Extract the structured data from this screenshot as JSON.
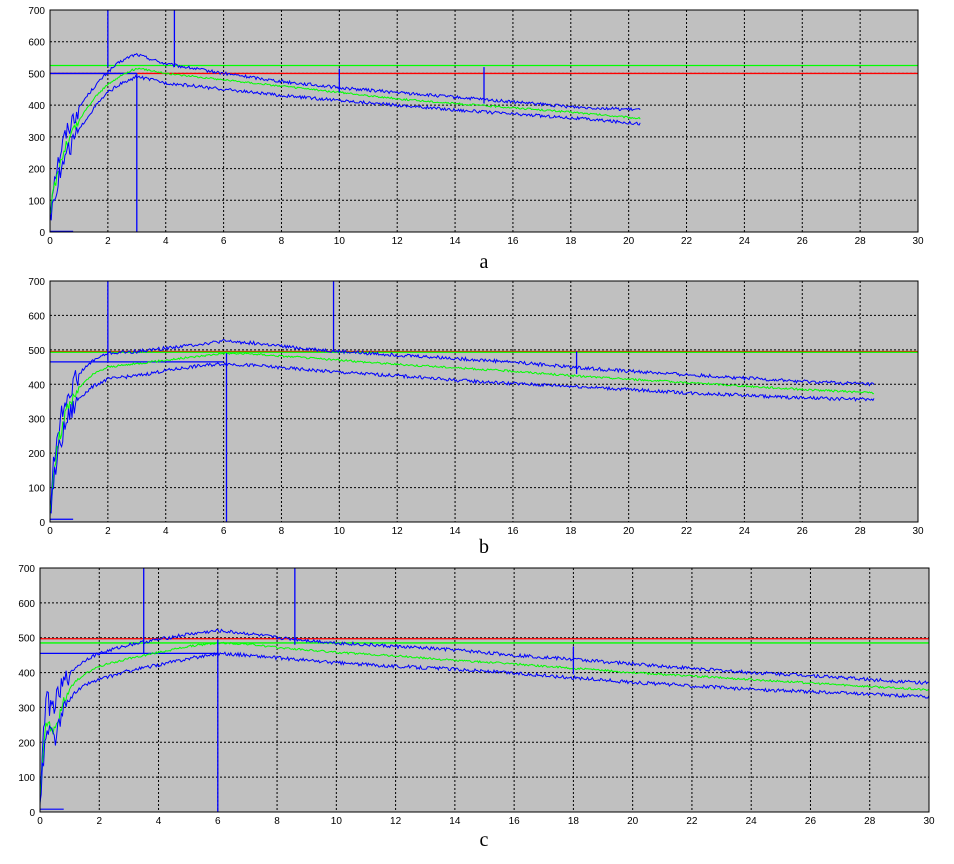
{
  "chart_data": [
    {
      "type": "line",
      "label": "a",
      "xlim": [
        0,
        30
      ],
      "ylim": [
        0,
        700
      ],
      "xticks": [
        "0",
        "2",
        "4",
        "6",
        "8",
        "10",
        "12",
        "14",
        "16",
        "18",
        "20",
        "22",
        "24",
        "26",
        "28",
        "30"
      ],
      "yticks": [
        "0",
        "100",
        "200",
        "300",
        "400",
        "500",
        "600",
        "700"
      ],
      "grid": true,
      "background": "#c0c0c0",
      "ref_lines": [
        {
          "y": 500,
          "color": "#ff0000"
        },
        {
          "y": 525,
          "color": "#00ff00"
        },
        {
          "y": 500,
          "x_to": 3,
          "color": "#0000ff"
        }
      ],
      "base_line": {
        "x": [
          0,
          0.8
        ],
        "y": 2
      },
      "v_markers": [
        {
          "x": 2.0,
          "y_from": 520,
          "y_to": 700
        },
        {
          "x": 3.0,
          "y_from": 0,
          "y_to": 500
        },
        {
          "x": 4.3,
          "y_from": 520,
          "y_to": 700
        },
        {
          "x": 10.0,
          "y_from": 440,
          "y_to": 515
        },
        {
          "x": 15.0,
          "y_from": 405,
          "y_to": 520
        }
      ],
      "series": [
        {
          "color": "#0000ff",
          "noise": 5,
          "x": [
            0,
            0.1,
            0.3,
            0.5,
            0.8,
            1.2,
            1.6,
            2.0,
            2.4,
            2.8,
            3.0,
            3.5,
            4.0,
            5,
            6,
            8,
            10,
            12,
            14,
            16,
            18,
            20.4
          ],
          "y": [
            60,
            150,
            230,
            300,
            360,
            420,
            465,
            505,
            535,
            555,
            560,
            545,
            530,
            515,
            500,
            475,
            455,
            440,
            425,
            410,
            395,
            385
          ]
        },
        {
          "color": "#00ff00",
          "noise": 3,
          "x": [
            0,
            0.1,
            0.3,
            0.5,
            0.8,
            1.2,
            1.6,
            2.0,
            2.4,
            2.8,
            3.0,
            3.5,
            4.0,
            5,
            6,
            8,
            10,
            12,
            14,
            16,
            18,
            20.4
          ],
          "y": [
            50,
            120,
            200,
            260,
            320,
            380,
            430,
            465,
            490,
            510,
            515,
            510,
            500,
            490,
            480,
            460,
            440,
            420,
            405,
            392,
            378,
            358
          ]
        },
        {
          "color": "#0000ff",
          "noise": 5,
          "x": [
            0,
            0.1,
            0.3,
            0.5,
            0.8,
            1.2,
            1.6,
            2.0,
            2.4,
            2.8,
            3.0,
            3.5,
            4.0,
            5,
            6,
            8,
            10,
            12,
            14,
            16,
            18,
            20.4
          ],
          "y": [
            40,
            100,
            170,
            230,
            290,
            350,
            400,
            440,
            465,
            480,
            490,
            480,
            470,
            460,
            450,
            430,
            415,
            400,
            385,
            372,
            360,
            342
          ]
        }
      ]
    },
    {
      "type": "line",
      "label": "b",
      "xlim": [
        0,
        30
      ],
      "ylim": [
        0,
        700
      ],
      "xticks": [
        "0",
        "2",
        "4",
        "6",
        "8",
        "10",
        "12",
        "14",
        "16",
        "18",
        "20",
        "22",
        "24",
        "26",
        "28",
        "30"
      ],
      "yticks": [
        "0",
        "100",
        "200",
        "300",
        "400",
        "500",
        "600",
        "700"
      ],
      "grid": true,
      "background": "#c0c0c0",
      "ref_lines": [
        {
          "y": 495,
          "color": "#ff0000"
        },
        {
          "y": 493,
          "color": "#00ff00"
        },
        {
          "y": 465,
          "x_to": 6,
          "color": "#0000ff"
        }
      ],
      "base_line": {
        "x": [
          0,
          0.8
        ],
        "y": 8
      },
      "v_markers": [
        {
          "x": 2.0,
          "y_from": 465,
          "y_to": 700
        },
        {
          "x": 6.1,
          "y_from": 0,
          "y_to": 490
        },
        {
          "x": 9.8,
          "y_from": 495,
          "y_to": 700
        },
        {
          "x": 18.2,
          "y_from": 430,
          "y_to": 495
        }
      ],
      "series": [
        {
          "color": "#0000ff",
          "noise": 5,
          "x": [
            0,
            0.1,
            0.3,
            0.6,
            1.0,
            1.5,
            2.0,
            3,
            4,
            5,
            6,
            7,
            8,
            10,
            12,
            14,
            16,
            18,
            20,
            22,
            24,
            26,
            28.5
          ],
          "y": [
            30,
            150,
            280,
            370,
            430,
            470,
            490,
            495,
            505,
            515,
            525,
            520,
            510,
            495,
            485,
            475,
            465,
            450,
            438,
            428,
            418,
            408,
            400
          ]
        },
        {
          "color": "#00ff00",
          "noise": 3,
          "x": [
            0,
            0.1,
            0.3,
            0.6,
            1.0,
            1.5,
            2.0,
            3,
            4,
            5,
            6,
            7,
            8,
            10,
            12,
            14,
            16,
            18,
            20,
            22,
            24,
            26,
            28.5
          ],
          "y": [
            20,
            120,
            240,
            330,
            390,
            430,
            450,
            460,
            470,
            480,
            490,
            488,
            482,
            470,
            458,
            448,
            438,
            425,
            415,
            405,
            395,
            385,
            375
          ]
        },
        {
          "color": "#0000ff",
          "noise": 5,
          "x": [
            0,
            0.1,
            0.3,
            0.6,
            1.0,
            1.5,
            2.0,
            3,
            4,
            5,
            6,
            7,
            8,
            10,
            12,
            14,
            16,
            18,
            20,
            22,
            24,
            26,
            28.5
          ],
          "y": [
            15,
            100,
            210,
            300,
            360,
            395,
            415,
            425,
            440,
            452,
            460,
            455,
            448,
            435,
            425,
            412,
            402,
            395,
            385,
            375,
            368,
            360,
            355
          ]
        }
      ]
    },
    {
      "type": "line",
      "label": "c",
      "xlim": [
        0,
        30
      ],
      "ylim": [
        0,
        700
      ],
      "xticks": [
        "0",
        "2",
        "4",
        "6",
        "8",
        "10",
        "12",
        "14",
        "16",
        "18",
        "20",
        "22",
        "24",
        "26",
        "28",
        "30"
      ],
      "yticks": [
        "0",
        "100",
        "200",
        "300",
        "400",
        "500",
        "600",
        "700"
      ],
      "grid": true,
      "background": "#c0c0c0",
      "ref_lines": [
        {
          "y": 497,
          "color": "#ff0000"
        },
        {
          "y": 485,
          "color": "#00ff00"
        },
        {
          "y": 455,
          "x_to": 6,
          "color": "#0000ff"
        }
      ],
      "base_line": {
        "x": [
          0,
          0.8
        ],
        "y": 8
      },
      "v_markers": [
        {
          "x": 3.5,
          "y_from": 455,
          "y_to": 700
        },
        {
          "x": 6.0,
          "y_from": 0,
          "y_to": 495
        },
        {
          "x": 8.6,
          "y_from": 480,
          "y_to": 700
        },
        {
          "x": 18.0,
          "y_from": 395,
          "y_to": 475
        }
      ],
      "series": [
        {
          "color": "#0000ff",
          "noise": 5,
          "x": [
            0,
            0.1,
            0.2,
            0.35,
            0.5,
            0.7,
            0.9,
            1.2,
            1.6,
            2.0,
            3,
            4,
            5,
            6,
            7,
            8,
            10,
            12,
            14,
            16,
            18,
            20,
            22,
            24,
            26,
            28,
            30
          ],
          "y": [
            40,
            200,
            330,
            300,
            310,
            350,
            385,
            415,
            440,
            455,
            480,
            495,
            510,
            520,
            512,
            500,
            485,
            475,
            465,
            450,
            438,
            425,
            412,
            400,
            392,
            380,
            370
          ]
        },
        {
          "color": "#00ff00",
          "noise": 3,
          "x": [
            0,
            0.1,
            0.2,
            0.35,
            0.5,
            0.7,
            0.9,
            1.2,
            1.6,
            2.0,
            3,
            4,
            5,
            6,
            7,
            8,
            10,
            12,
            14,
            16,
            18,
            20,
            22,
            24,
            26,
            28,
            30
          ],
          "y": [
            30,
            170,
            260,
            240,
            230,
            290,
            340,
            375,
            400,
            418,
            440,
            458,
            475,
            485,
            482,
            472,
            458,
            448,
            435,
            425,
            412,
            400,
            390,
            380,
            370,
            360,
            350
          ]
        },
        {
          "color": "#0000ff",
          "noise": 5,
          "x": [
            0,
            0.1,
            0.2,
            0.35,
            0.5,
            0.7,
            0.9,
            1.2,
            1.6,
            2.0,
            3,
            4,
            5,
            6,
            7,
            8,
            10,
            12,
            14,
            16,
            18,
            20,
            22,
            24,
            26,
            28,
            30
          ],
          "y": [
            20,
            140,
            220,
            230,
            210,
            260,
            310,
            345,
            368,
            380,
            405,
            422,
            440,
            455,
            450,
            442,
            428,
            418,
            410,
            398,
            385,
            372,
            362,
            352,
            345,
            338,
            330
          ]
        }
      ]
    }
  ]
}
